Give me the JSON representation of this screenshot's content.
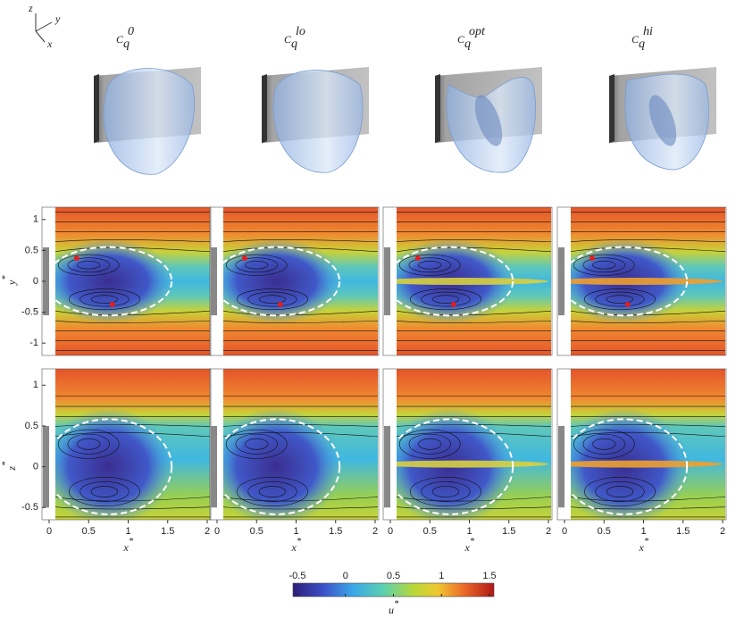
{
  "triad": {
    "z": "z",
    "y": "y",
    "x": "x"
  },
  "columns": [
    {
      "base": "C",
      "sub": "q",
      "sup": "0"
    },
    {
      "base": "C",
      "sub": "q",
      "sup": "lo"
    },
    {
      "base": "C",
      "sub": "q",
      "sup": "opt"
    },
    {
      "base": "C",
      "sub": "q",
      "sup": "hi"
    }
  ],
  "rows": [
    {
      "ylabel": {
        "base": "y",
        "sup": "*"
      },
      "ylim": [
        -1.2,
        1.2
      ],
      "yticks": [
        1,
        0.5,
        0,
        -0.5,
        -1
      ]
    },
    {
      "ylabel": {
        "base": "z",
        "sup": "*"
      },
      "ylim": [
        -0.65,
        1.2
      ],
      "yticks": [
        1,
        0.5,
        0,
        -0.5
      ]
    }
  ],
  "xlabel": {
    "base": "x",
    "sup": "*"
  },
  "xlim": [
    0,
    2
  ],
  "xticks": [
    0,
    0.5,
    1,
    1.5,
    2
  ],
  "colorbar": {
    "lim": [
      -0.5,
      1.5
    ],
    "ticks": [
      -0.5,
      0,
      0.5,
      1,
      1.5
    ],
    "label": {
      "base": "u",
      "sup": "*"
    }
  }
}
